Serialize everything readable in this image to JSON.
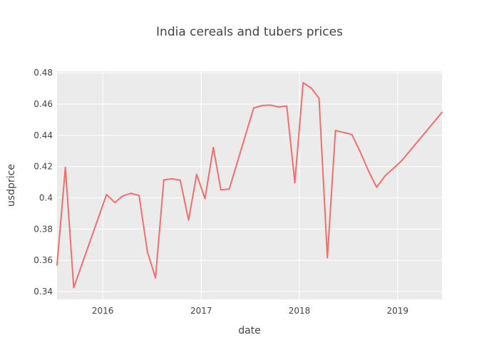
{
  "chart_data": {
    "type": "line",
    "title": "India cereals and tubers prices",
    "xlabel": "date",
    "ylabel": "usdprice",
    "xlim": [
      "2015-07-15",
      "2019-06-15"
    ],
    "ylim": [
      0.335,
      0.481
    ],
    "y_ticks": [
      0.34,
      0.36,
      0.38,
      0.4,
      0.42,
      0.44,
      0.46,
      0.48
    ],
    "y_tick_labels": [
      "0.34",
      "0.36",
      "0.38",
      "0.4",
      "0.42",
      "0.44",
      "0.46",
      "0.48"
    ],
    "x_ticks": [
      "2016-01-01",
      "2017-01-01",
      "2018-01-01",
      "2019-01-01"
    ],
    "x_tick_labels": [
      "2016",
      "2017",
      "2018",
      "2019"
    ],
    "grid": true,
    "plot_background": "#ebebeb",
    "series": [
      {
        "color": "#f46d6d",
        "x": [
          "2015-07-15",
          "2015-08-15",
          "2015-09-15",
          "2016-01-15",
          "2016-02-15",
          "2016-03-15",
          "2016-04-15",
          "2016-05-15",
          "2016-06-15",
          "2016-07-15",
          "2016-08-15",
          "2016-09-15",
          "2016-10-15",
          "2016-11-15",
          "2016-12-15",
          "2017-01-15",
          "2017-02-15",
          "2017-03-15",
          "2017-04-15",
          "2017-07-15",
          "2017-08-15",
          "2017-09-15",
          "2017-10-15",
          "2017-11-15",
          "2017-12-15",
          "2018-01-15",
          "2018-02-15",
          "2018-03-15",
          "2018-04-15",
          "2018-05-15",
          "2018-07-15",
          "2018-08-15",
          "2018-09-15",
          "2018-10-15",
          "2018-11-15",
          "2019-01-15",
          "2019-06-15"
        ],
        "y": [
          0.357,
          0.4195,
          0.3425,
          0.4021,
          0.397,
          0.4012,
          0.4029,
          0.4015,
          0.3655,
          0.3488,
          0.4115,
          0.4122,
          0.4113,
          0.3858,
          0.415,
          0.3995,
          0.4322,
          0.4051,
          0.4056,
          0.4575,
          0.4591,
          0.4594,
          0.4582,
          0.4587,
          0.4097,
          0.4737,
          0.4701,
          0.4637,
          0.3617,
          0.4431,
          0.4406,
          0.4295,
          0.4172,
          0.4068,
          0.414,
          0.4235,
          0.4547
        ]
      }
    ]
  }
}
